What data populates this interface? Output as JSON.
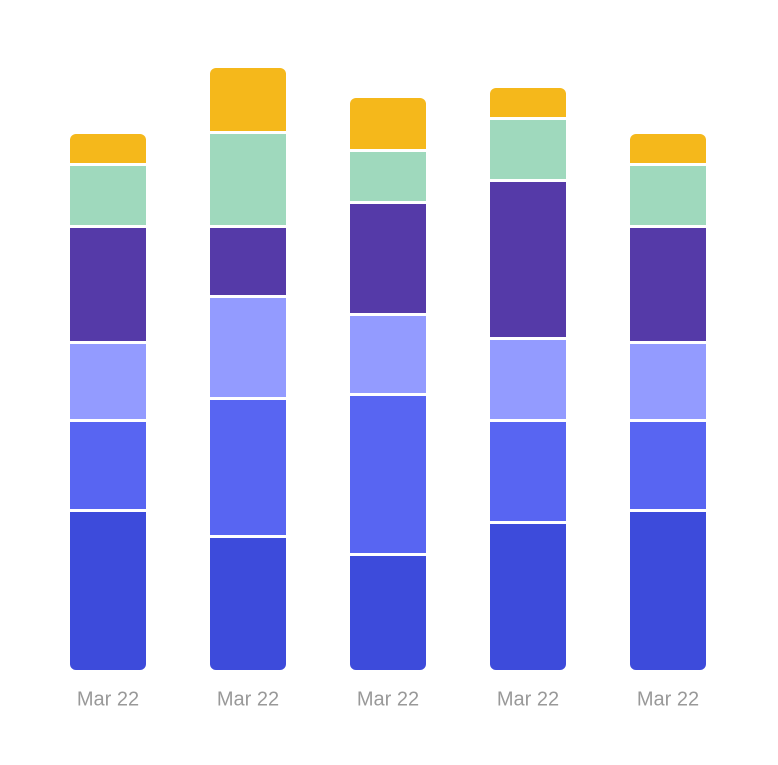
{
  "chart_data": {
    "type": "stacked_bar",
    "categories": [
      "Mar 22",
      "Mar 22",
      "Mar 22",
      "Mar 22",
      "Mar 22"
    ],
    "series": [
      {
        "color": "#3d4bdb",
        "values": [
          160,
          134,
          116,
          148,
          160
        ]
      },
      {
        "color": "#5865f2",
        "values": [
          90,
          138,
          160,
          102,
          90
        ]
      },
      {
        "color": "#939bff",
        "values": [
          78,
          102,
          80,
          82,
          78
        ]
      },
      {
        "color": "#553aa8",
        "values": [
          116,
          70,
          112,
          158,
          116
        ]
      },
      {
        "color": "#9fd9bd",
        "values": [
          62,
          94,
          52,
          62,
          62
        ]
      },
      {
        "color": "#f5b81b",
        "values": [
          30,
          64,
          52,
          30,
          30
        ]
      }
    ],
    "ylim": [
      0,
      600
    ]
  }
}
